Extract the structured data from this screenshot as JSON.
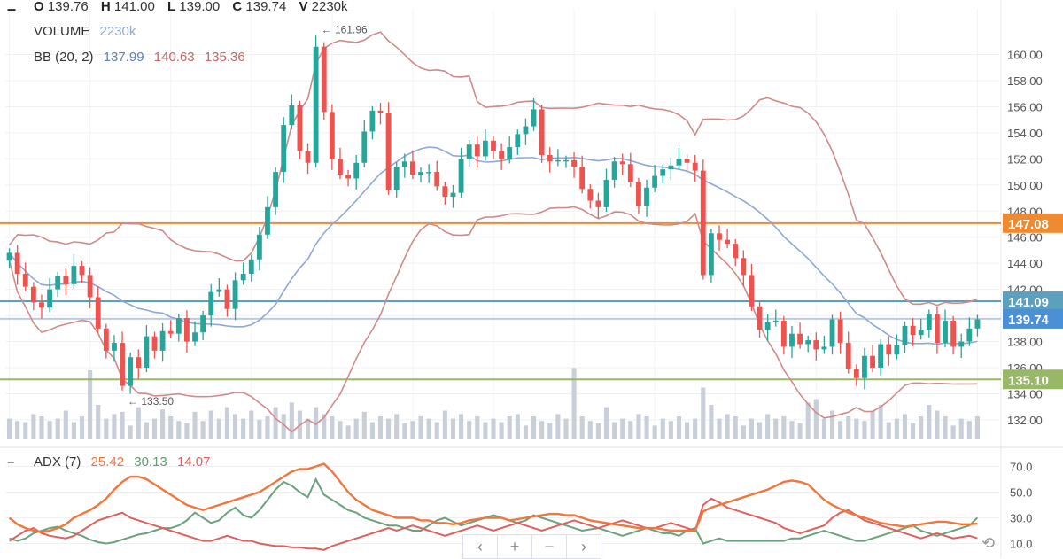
{
  "header": {
    "menu_icon": "minus-icon",
    "open_label": "O",
    "open": "139.76",
    "high_label": "H",
    "high": "141.00",
    "low_label": "L",
    "low": "139.00",
    "close_label": "C",
    "close": "139.74",
    "vol_label": "V",
    "volume": "2230k"
  },
  "legend": {
    "volume_label": "VOLUME",
    "volume_value": "2230k",
    "bb_label": "BB (20, 2)",
    "bb_mid": "137.99",
    "bb_upper": "140.63",
    "bb_lower": "135.36",
    "adx_label": "ADX (7)",
    "adx_value": "25.42",
    "pdi_value": "30.13",
    "mdi_value": "14.07"
  },
  "colors": {
    "up": "#26a69a",
    "down": "#ef5350",
    "bb_band": "#d08a8a",
    "bb_mid": "#8fa8d4",
    "adx": "#f2763c",
    "pdi": "#6aa27e",
    "mdi": "#e0605e",
    "volume": "#c8cfd8",
    "hline_orange": "#f08a30",
    "hline_blue": "#5ba0bd",
    "hline_light": "#b8cce8",
    "hline_green": "#98b868"
  },
  "navigator": {
    "prev_icon": "chevron-left-icon",
    "zoom_in_icon": "plus-icon",
    "zoom_out_icon": "minus-icon",
    "next_icon": "chevron-right-icon",
    "undo_icon": "undo-icon",
    "prev": "‹",
    "zoom_in": "+",
    "zoom_out": "−",
    "next": "›",
    "undo": "⟲"
  },
  "chart_data": {
    "type": "candlestick",
    "price_axis": {
      "ticks": [
        "132.00",
        "134.00",
        "136.00",
        "138.00",
        "140.00",
        "142.00",
        "144.00",
        "146.00",
        "148.00",
        "150.00",
        "152.00",
        "154.00",
        "156.00",
        "158.00",
        "160.00"
      ],
      "range": [
        130.5,
        163.5
      ]
    },
    "adx_axis": {
      "ticks": [
        "10.0",
        "30.0",
        "50.0",
        "70.0"
      ],
      "range": [
        0,
        80
      ]
    },
    "annotations": [
      {
        "text": "← 161.96",
        "price": 161.96,
        "bar": 38
      },
      {
        "text": "← 133.50",
        "price": 133.5,
        "bar": 14
      }
    ],
    "price_tags": [
      {
        "text": "147.08",
        "price": 147.08,
        "color": "#f08a30"
      },
      {
        "text": "141.09",
        "price": 141.09,
        "color": "#5ba0bd"
      },
      {
        "text": "139.74",
        "price": 139.74,
        "color": "#4b8fd6"
      },
      {
        "text": "135.10",
        "price": 135.1,
        "color": "#98b868"
      }
    ],
    "hlines": [
      {
        "price": 147.08,
        "color": "#f08a30"
      },
      {
        "price": 141.09,
        "color": "#5ba0bd"
      },
      {
        "price": 139.74,
        "color": "#b8cce8"
      },
      {
        "price": 135.1,
        "color": "#98b868"
      }
    ],
    "closes": [
      144.8,
      143.2,
      142.2,
      141.0,
      140.6,
      142.0,
      143.0,
      142.4,
      143.8,
      143.1,
      141.4,
      139.0,
      137.3,
      137.9,
      134.6,
      136.8,
      136.0,
      138.4,
      137.3,
      138.8,
      138.6,
      139.8,
      138.0,
      138.7,
      140.0,
      141.8,
      142.0,
      140.5,
      142.7,
      143.2,
      144.3,
      146.2,
      148.3,
      151.0,
      154.6,
      156.1,
      152.6,
      151.7,
      160.6,
      155.6,
      152.0,
      150.8,
      150.5,
      151.7,
      154.1,
      155.7,
      155.5,
      149.6,
      151.4,
      151.8,
      150.8,
      151.0,
      151.0,
      149.9,
      149.1,
      149.4,
      152.0,
      153.1,
      152.2,
      153.4,
      152.6,
      152.0,
      152.9,
      153.9,
      154.5,
      155.8,
      152.3,
      151.8,
      151.9,
      151.9,
      151.4,
      149.7,
      148.8,
      148.3,
      150.4,
      151.8,
      151.6,
      150.2,
      148.4,
      149.8,
      150.7,
      151.2,
      151.5,
      152.0,
      151.7,
      151.1,
      143.1,
      146.3,
      145.8,
      145.5,
      144.4,
      143.1,
      140.7,
      138.9,
      139.5,
      139.6,
      137.6,
      138.6,
      137.8,
      138.1,
      137.4,
      137.6,
      139.7,
      137.9,
      135.9,
      135.2,
      136.9,
      136.0,
      137.8,
      137.0,
      137.7,
      139.2,
      138.5,
      138.9,
      140.1,
      137.9,
      139.6,
      137.6,
      138.0,
      139.0,
      139.7
    ],
    "volumes": [
      0.18,
      0.16,
      0.15,
      0.22,
      0.2,
      0.16,
      0.18,
      0.25,
      0.15,
      0.2,
      0.6,
      0.3,
      0.18,
      0.22,
      0.24,
      0.12,
      0.28,
      0.15,
      0.18,
      0.26,
      0.2,
      0.16,
      0.14,
      0.24,
      0.16,
      0.25,
      0.18,
      0.28,
      0.22,
      0.18,
      0.25,
      0.17,
      0.2,
      0.28,
      0.22,
      0.32,
      0.25,
      0.18,
      0.28,
      0.22,
      0.2,
      0.16,
      0.12,
      0.18,
      0.24,
      0.15,
      0.2,
      0.18,
      0.22,
      0.14,
      0.16,
      0.2,
      0.18,
      0.15,
      0.25,
      0.18,
      0.22,
      0.16,
      0.2,
      0.15,
      0.18,
      0.15,
      0.2,
      0.22,
      0.12,
      0.2,
      0.16,
      0.14,
      0.22,
      0.18,
      0.62,
      0.2,
      0.16,
      0.14,
      0.28,
      0.15,
      0.18,
      0.16,
      0.22,
      0.2,
      0.12,
      0.18,
      0.16,
      0.2,
      0.15,
      0.18,
      0.45,
      0.3,
      0.18,
      0.22,
      0.2,
      0.12,
      0.18,
      0.15,
      0.22,
      0.18,
      0.2,
      0.16,
      0.14,
      0.32,
      0.35,
      0.18,
      0.25,
      0.16,
      0.2,
      0.18,
      0.16,
      0.25,
      0.3,
      0.15,
      0.18,
      0.22,
      0.14,
      0.2,
      0.3,
      0.25,
      0.2,
      0.12,
      0.18,
      0.16,
      0.2
    ],
    "adx": [
      30,
      25,
      22,
      20,
      19,
      20,
      22,
      25,
      30,
      33,
      36,
      40,
      45,
      52,
      58,
      62,
      62,
      60,
      56,
      52,
      48,
      44,
      40,
      38,
      36,
      38,
      40,
      42,
      44,
      46,
      48,
      50,
      54,
      58,
      62,
      66,
      68,
      68,
      70,
      72,
      66,
      58,
      50,
      44,
      40,
      36,
      34,
      32,
      30,
      30,
      30,
      28,
      28,
      26,
      26,
      25,
      26,
      28,
      29,
      30,
      30,
      30,
      28,
      29,
      30,
      31,
      32,
      33,
      33,
      32,
      32,
      30,
      28,
      27,
      26,
      25,
      24,
      23,
      22,
      22,
      22,
      21,
      20,
      20,
      20,
      20,
      35,
      38,
      40,
      42,
      44,
      46,
      48,
      50,
      52,
      55,
      58,
      59,
      58,
      56,
      50,
      44,
      40,
      37,
      34,
      32,
      30,
      28,
      26,
      25,
      24,
      23,
      24,
      25,
      26,
      27,
      27,
      26,
      25,
      25,
      25.42
    ],
    "pdi": [
      14,
      12,
      14,
      18,
      20,
      22,
      23,
      20,
      18,
      16,
      13,
      11,
      10,
      11,
      13,
      15,
      17,
      18,
      20,
      22,
      22,
      24,
      28,
      34,
      30,
      26,
      28,
      34,
      38,
      32,
      30,
      36,
      44,
      52,
      58,
      55,
      50,
      46,
      60,
      48,
      44,
      40,
      36,
      34,
      30,
      28,
      26,
      24,
      24,
      22,
      20,
      20,
      24,
      28,
      30,
      27,
      24,
      26,
      28,
      30,
      32,
      30,
      28,
      26,
      28,
      32,
      30,
      28,
      26,
      24,
      22,
      20,
      21,
      22,
      20,
      18,
      16,
      18,
      20,
      22,
      20,
      18,
      18,
      16,
      20,
      22,
      10,
      12,
      14,
      12,
      12,
      12,
      12,
      12,
      12,
      12,
      12,
      14,
      14,
      16,
      18,
      20,
      18,
      16,
      14,
      12,
      12,
      14,
      16,
      18,
      20,
      22,
      24,
      20,
      18,
      16,
      18,
      20,
      22,
      24,
      30.13
    ],
    "mdi": [
      12,
      16,
      20,
      22,
      18,
      16,
      15,
      14,
      16,
      20,
      24,
      28,
      30,
      32,
      34,
      30,
      28,
      26,
      24,
      22,
      20,
      18,
      16,
      14,
      12,
      12,
      14,
      16,
      14,
      12,
      12,
      10,
      9,
      8,
      8,
      7,
      7,
      6,
      6,
      5,
      8,
      10,
      12,
      14,
      16,
      18,
      20,
      22,
      20,
      22,
      24,
      22,
      20,
      18,
      16,
      18,
      20,
      22,
      24,
      22,
      20,
      22,
      24,
      26,
      24,
      22,
      20,
      22,
      24,
      26,
      28,
      26,
      24,
      22,
      24,
      26,
      28,
      26,
      24,
      22,
      22,
      24,
      26,
      24,
      22,
      20,
      40,
      45,
      42,
      38,
      36,
      34,
      32,
      30,
      28,
      26,
      22,
      20,
      18,
      20,
      22,
      24,
      30,
      34,
      36,
      32,
      28,
      26,
      24,
      22,
      20,
      18,
      16,
      14,
      16,
      18,
      16,
      14,
      15,
      16,
      14.07
    ]
  }
}
